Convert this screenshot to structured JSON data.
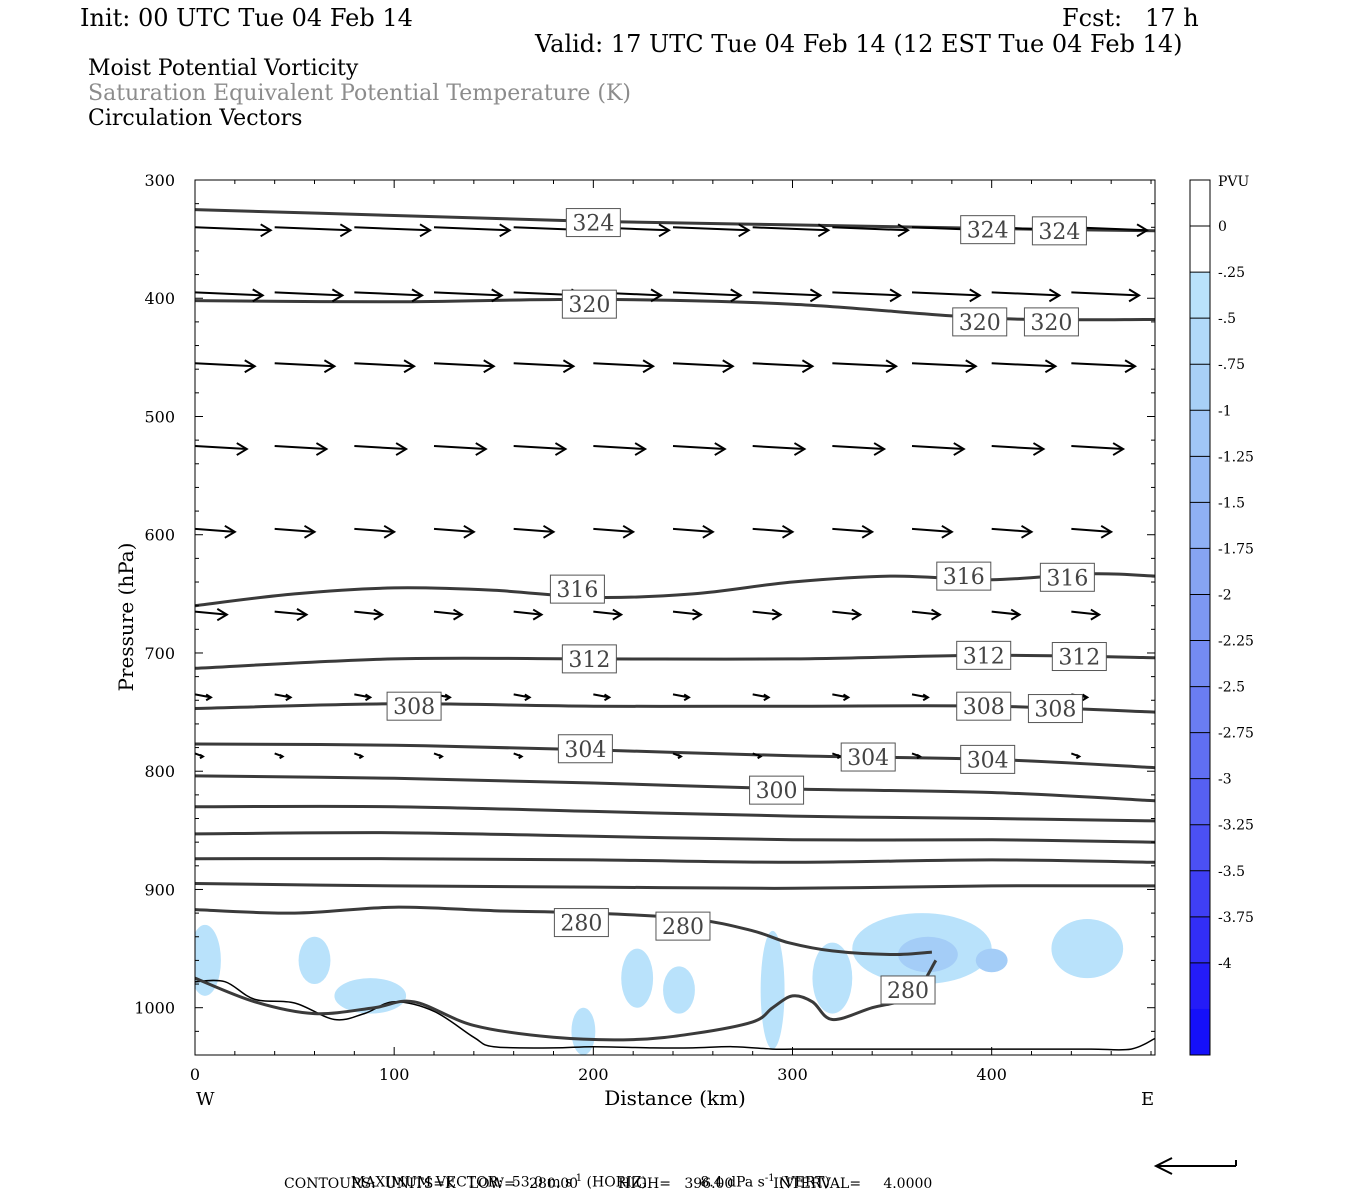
{
  "header": {
    "init": "Init: 00 UTC Tue 04 Feb 14",
    "fcst": "Fcst:   17 h",
    "valid": "Valid: 17 UTC Tue 04 Feb 14 (12 EST Tue 04 Feb 14)",
    "field1": "Moist Potential Vorticity",
    "field2": "Saturation Equivalent Potential Temperature (K)",
    "field3": "Circulation Vectors"
  },
  "footer": {
    "max_vector_label": "MAXIMUM VECTOR:",
    "horiz_value": "53.0 m s",
    "horiz_exp": "-1",
    "horiz_tag": "(HORIZ)",
    "vert_value": "8.4 dPa s",
    "vert_exp": "-1",
    "vert_tag": "(VERT)",
    "contours_line": "CONTOURS:  UNITS=K   LOW=   280.00         HIGH=   396.00         INTERVAL=     4.0000"
  },
  "colors": {
    "contour": "#3a3a3a",
    "header_gray": "#8c8c8c",
    "pv_light": "#b9e2fb",
    "pv_mid": "#a4cdf7"
  },
  "chart_data": {
    "type": "cross-section",
    "xlabel": "Distance (km)",
    "ylabel": "Pressure (hPa)",
    "xlim": [
      0,
      482
    ],
    "ylim": [
      300,
      1040
    ],
    "x_ticks": [
      0,
      100,
      200,
      300,
      400
    ],
    "x_tick_labels": [
      "0",
      "100",
      "200",
      "300",
      "400"
    ],
    "y_ticks": [
      300,
      400,
      500,
      600,
      700,
      800,
      900,
      1000
    ],
    "y_tick_labels": [
      "300",
      "400",
      "500",
      "600",
      "700",
      "800",
      "900",
      "1000"
    ],
    "left_end_label": "W",
    "right_end_label": "E",
    "colorbar": {
      "units": "PVU",
      "levels": [
        0.25,
        0,
        -0.25,
        -0.5,
        -0.75,
        -1,
        -1.25,
        -1.5,
        -1.75,
        -2,
        -2.25,
        -2.5,
        -2.75,
        -3,
        -3.25,
        -3.5,
        -3.75,
        -4,
        -4.25
      ],
      "labels": [
        "0",
        "-.25",
        "-.5",
        "-.75",
        "-1",
        "-1.25",
        "-1.5",
        "-1.75",
        "-2",
        "-2.25",
        "-2.5",
        "-2.75",
        "-3",
        "-3.25",
        "-3.5",
        "-3.75",
        "-4"
      ],
      "colors": [
        "#ffffff",
        "#ffffff",
        "#b9e2fb",
        "#b1d9f9",
        "#a8d0f7",
        "#a0c6f6",
        "#97bbf5",
        "#8fb0f4",
        "#86a4f3",
        "#7d98f2",
        "#748bf2",
        "#6a7df2",
        "#606ff2",
        "#5660f3",
        "#4b50f4",
        "#3f3ff5",
        "#322ef6",
        "#241cf8",
        "#1510fa",
        "#0b00ff"
      ]
    },
    "isentropes": [
      {
        "theta": 324,
        "x": [
          0,
          100,
          200,
          300,
          400,
          482
        ],
        "p": [
          325,
          330,
          335,
          338,
          341,
          343
        ]
      },
      {
        "theta": 320,
        "x": [
          0,
          100,
          200,
          300,
          400,
          482
        ],
        "p": [
          402,
          403,
          401,
          405,
          417,
          418
        ]
      },
      {
        "theta": 316,
        "x": [
          0,
          50,
          100,
          150,
          200,
          250,
          300,
          350,
          400,
          450,
          482
        ],
        "p": [
          660,
          650,
          645,
          647,
          653,
          650,
          640,
          635,
          638,
          633,
          635
        ]
      },
      {
        "theta": 312,
        "x": [
          0,
          100,
          200,
          300,
          400,
          482
        ],
        "p": [
          713,
          705,
          705,
          705,
          702,
          704
        ]
      },
      {
        "theta": 308,
        "x": [
          0,
          100,
          200,
          300,
          400,
          482
        ],
        "p": [
          747,
          743,
          745,
          745,
          745,
          750
        ]
      },
      {
        "theta": 304,
        "x": [
          0,
          100,
          200,
          300,
          400,
          482
        ],
        "p": [
          777,
          778,
          782,
          787,
          790,
          797
        ]
      },
      {
        "theta": 300,
        "x": [
          0,
          100,
          200,
          300,
          400,
          482
        ],
        "p": [
          804,
          806,
          810,
          815,
          818,
          825
        ]
      },
      {
        "theta": 296,
        "x": [
          0,
          100,
          200,
          300,
          400,
          482
        ],
        "p": [
          830,
          830,
          834,
          838,
          840,
          842
        ]
      },
      {
        "theta": 292,
        "x": [
          0,
          100,
          200,
          300,
          400,
          482
        ],
        "p": [
          853,
          852,
          855,
          858,
          858,
          860
        ]
      },
      {
        "theta": 288,
        "x": [
          0,
          100,
          200,
          300,
          400,
          482
        ],
        "p": [
          874,
          874,
          875,
          877,
          875,
          877
        ]
      },
      {
        "theta": 284,
        "x": [
          0,
          100,
          200,
          300,
          400,
          482
        ],
        "p": [
          895,
          897,
          898,
          899,
          897,
          897
        ]
      },
      {
        "theta": 280,
        "x": [
          0,
          50,
          100,
          150,
          200,
          250,
          280,
          298,
          320,
          350,
          370
        ],
        "p": [
          917,
          920,
          915,
          918,
          920,
          925,
          935,
          945,
          952,
          955,
          953
        ]
      }
    ],
    "contour_labels": [
      {
        "text": "324",
        "x": 200,
        "p": 336
      },
      {
        "text": "324",
        "x": 398,
        "p": 342
      },
      {
        "text": "324",
        "x": 434,
        "p": 343
      },
      {
        "text": "320",
        "x": 198,
        "p": 405
      },
      {
        "text": "320",
        "x": 394,
        "p": 420
      },
      {
        "text": "320",
        "x": 430,
        "p": 420
      },
      {
        "text": "316",
        "x": 192,
        "p": 646
      },
      {
        "text": "316",
        "x": 386,
        "p": 635
      },
      {
        "text": "316",
        "x": 438,
        "p": 636
      },
      {
        "text": "312",
        "x": 198,
        "p": 705
      },
      {
        "text": "312",
        "x": 396,
        "p": 702
      },
      {
        "text": "312",
        "x": 444,
        "p": 703
      },
      {
        "text": "308",
        "x": 110,
        "p": 745
      },
      {
        "text": "308",
        "x": 396,
        "p": 745
      },
      {
        "text": "308",
        "x": 432,
        "p": 747
      },
      {
        "text": "304",
        "x": 196,
        "p": 781
      },
      {
        "text": "304",
        "x": 338,
        "p": 788
      },
      {
        "text": "304",
        "x": 398,
        "p": 790
      },
      {
        "text": "300",
        "x": 292,
        "p": 816
      },
      {
        "text": "280",
        "x": 194,
        "p": 928
      },
      {
        "text": "280",
        "x": 245,
        "p": 931
      },
      {
        "text": "280",
        "x": 358,
        "p": 985
      }
    ],
    "low_level_contour": {
      "x": [
        0,
        30,
        60,
        90,
        110,
        140,
        180,
        220,
        250,
        280,
        290,
        300,
        310,
        320,
        340,
        360,
        372
      ],
      "p": [
        975,
        995,
        1005,
        1000,
        995,
        1015,
        1025,
        1027,
        1022,
        1012,
        1000,
        990,
        995,
        1010,
        1000,
        990,
        960
      ]
    },
    "terrain": {
      "x": [
        0,
        15,
        30,
        50,
        70,
        85,
        100,
        120,
        140,
        150,
        180,
        200,
        230,
        250,
        270,
        290,
        300,
        320,
        350,
        380,
        420,
        450,
        470,
        482
      ],
      "p": [
        978,
        978,
        993,
        996,
        1010,
        1005,
        995,
        1003,
        1025,
        1033,
        1034,
        1033,
        1034,
        1034,
        1033,
        1035,
        1035,
        1035,
        1035,
        1035,
        1035,
        1035,
        1035,
        1026
      ]
    },
    "pv_patches": [
      {
        "x": 5,
        "p": 960,
        "rx": 8,
        "rp": 30
      },
      {
        "x": 60,
        "p": 960,
        "rx": 8,
        "rp": 20
      },
      {
        "x": 88,
        "p": 990,
        "rx": 18,
        "rp": 15
      },
      {
        "x": 195,
        "p": 1020,
        "rx": 6,
        "rp": 20
      },
      {
        "x": 222,
        "p": 975,
        "rx": 8,
        "rp": 25
      },
      {
        "x": 243,
        "p": 985,
        "rx": 8,
        "rp": 20
      },
      {
        "x": 290,
        "p": 985,
        "rx": 6,
        "rp": 50
      },
      {
        "x": 320,
        "p": 975,
        "rx": 10,
        "rp": 30
      },
      {
        "x": 365,
        "p": 950,
        "rx": 35,
        "rp": 30
      },
      {
        "x": 448,
        "p": 950,
        "rx": 18,
        "rp": 25
      }
    ],
    "pv_core": [
      {
        "x": 368,
        "p": 955,
        "rx": 15,
        "rp": 15
      },
      {
        "x": 400,
        "p": 960,
        "rx": 8,
        "rp": 10
      }
    ],
    "vectors": [
      {
        "p": 340,
        "x0": 0,
        "dx": 40,
        "du": [
          38,
          38,
          38,
          38,
          38,
          38,
          38,
          38,
          38,
          38,
          38,
          38
        ]
      },
      {
        "p": 395,
        "x0": 0,
        "dx": 40,
        "du": [
          34,
          34,
          34,
          34,
          34,
          34,
          34,
          34,
          34,
          34,
          34,
          34
        ]
      },
      {
        "p": 455,
        "x0": 0,
        "dx": 40,
        "du": [
          30,
          30,
          30,
          30,
          30,
          30,
          30,
          30,
          32,
          32,
          32,
          32
        ]
      },
      {
        "p": 525,
        "x0": 0,
        "dx": 40,
        "du": [
          26,
          26,
          26,
          26,
          26,
          26,
          26,
          26,
          26,
          26,
          26,
          26
        ]
      },
      {
        "p": 595,
        "x0": 0,
        "dx": 40,
        "du": [
          20,
          20,
          20,
          20,
          20,
          20,
          20,
          20,
          20,
          20,
          20,
          20
        ]
      },
      {
        "p": 665,
        "x0": 0,
        "dx": 40,
        "du": [
          16,
          16,
          14,
          14,
          14,
          14,
          14,
          14,
          14,
          14,
          14,
          14
        ]
      },
      {
        "p": 735,
        "x0": 0,
        "dx": 40,
        "du": [
          8,
          8,
          8,
          8,
          8,
          8,
          8,
          8,
          8,
          8,
          8,
          8
        ]
      },
      {
        "p": 785,
        "x0": 0,
        "dx": 40,
        "du": [
          4,
          4,
          4,
          4,
          4,
          4,
          4,
          4,
          4,
          4,
          4,
          4
        ]
      }
    ]
  }
}
